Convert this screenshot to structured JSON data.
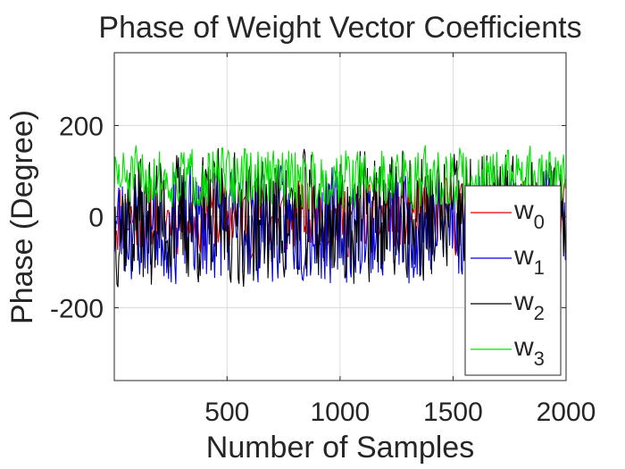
{
  "chart_data": {
    "type": "line",
    "title": "Phase of Weight Vector Coefficients",
    "xlabel": "Number of Samples",
    "ylabel": "Phase (Degree)",
    "xlim": [
      1,
      2000
    ],
    "ylim": [
      -360,
      360
    ],
    "xticks": [
      500,
      1000,
      1500,
      2000
    ],
    "yticks": [
      -200,
      0,
      200
    ],
    "grid": true,
    "legend_position": "lower-right",
    "samples": 2000,
    "series": [
      {
        "name": "w0",
        "label_base": "w",
        "label_sub": "0",
        "color": "#e00000",
        "center": 0,
        "spread": 95,
        "draw_step": 5,
        "seed": 11
      },
      {
        "name": "w1",
        "label_base": "w",
        "label_sub": "1",
        "color": "#0000e0",
        "center": -20,
        "spread": 140,
        "draw_step": 4,
        "seed": 23
      },
      {
        "name": "w2",
        "label_base": "w",
        "label_sub": "2",
        "color": "#000000",
        "center": -5,
        "spread": 165,
        "draw_step": 4,
        "seed": 37
      },
      {
        "name": "w3",
        "label_base": "w",
        "label_sub": "3",
        "color": "#00e000",
        "center": 85,
        "spread": 75,
        "draw_step": 4,
        "seed": 51
      }
    ]
  }
}
